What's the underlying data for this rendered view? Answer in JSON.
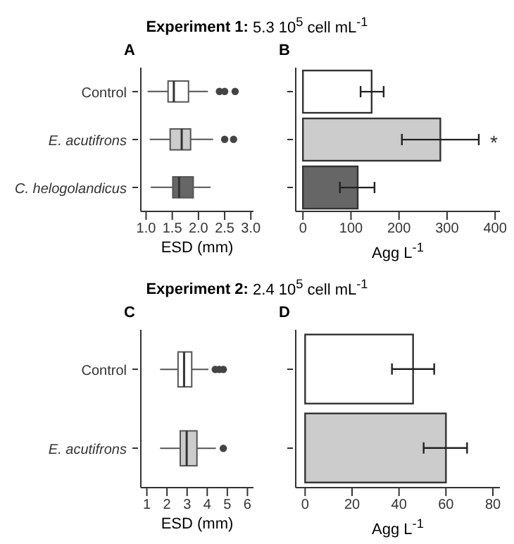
{
  "chart_data": [
    {
      "type": "box",
      "orientation": "horizontal",
      "title": "Experiment 1: 5.3 10$^{5}$ cell mL$^{-1}$",
      "subtitle": "A",
      "xlabel": "ESD (mm)",
      "categories": [
        "Control",
        "E. acutifrons",
        "C. helogolandicus"
      ],
      "colors": [
        "#ffffff",
        "#cccccc",
        "#666666"
      ],
      "boxes": [
        {
          "low": 1.03,
          "q1": 1.42,
          "median": 1.53,
          "q3": 1.81,
          "high": 2.18,
          "outliers": [
            2.4,
            2.5,
            2.7
          ]
        },
        {
          "low": 1.07,
          "q1": 1.46,
          "median": 1.68,
          "q3": 1.85,
          "high": 2.28,
          "outliers": [
            2.5,
            2.67
          ]
        },
        {
          "low": 1.09,
          "q1": 1.51,
          "median": 1.63,
          "q3": 1.9,
          "high": 2.23
        }
      ],
      "xlim": [
        0.9,
        3.05
      ],
      "xticks": [
        {
          "value": 1,
          "label": "1.0"
        },
        1.5,
        {
          "value": 2,
          "label": "2.0"
        },
        2.5,
        {
          "value": 3,
          "label": "3.0"
        }
      ],
      "legend": false
    },
    {
      "type": "bar",
      "orientation": "horizontal",
      "subtitle": "B",
      "xlabel": "Agg L$^{-1}$",
      "categories": [
        "Control",
        "E. acutifrons",
        "C. helogolandicus"
      ],
      "tick_labels": "x",
      "values": [
        143,
        286,
        114
      ],
      "colors": [
        "#ffffff",
        "#cccccc",
        "#666666"
      ],
      "errors": [
        [
          120,
          168
        ],
        [
          206,
          366
        ],
        [
          77,
          149
        ]
      ],
      "xlim": [
        -15,
        410
      ],
      "xticks": [
        0,
        100,
        200,
        300,
        400
      ],
      "annotations": [
        {
          "text": "*",
          "x": 366,
          "y": "E. acutifrons"
        }
      ],
      "legend": false
    },
    {
      "type": "box",
      "orientation": "horizontal",
      "title": "Experiment 2: 2.4 10$^{5}$ cell mL$^{-1}$",
      "subtitle": "C",
      "xlabel": "ESD (mm)",
      "categories": [
        "Control",
        "E. acutifrons"
      ],
      "colors": [
        "#ffffff",
        "#cccccc"
      ],
      "boxes": [
        {
          "low": 1.66,
          "q1": 2.55,
          "median": 2.85,
          "q3": 3.23,
          "high": 4.06,
          "outliers": [
            4.4,
            4.6,
            4.8
          ]
        },
        {
          "low": 1.66,
          "q1": 2.66,
          "median": 2.98,
          "q3": 3.49,
          "high": 4.43,
          "outliers": [
            4.8
          ]
        }
      ],
      "xlim": [
        0.7,
        6.3
      ],
      "xticks": [
        1,
        2,
        3,
        4,
        5,
        6
      ],
      "legend": false
    },
    {
      "type": "bar",
      "orientation": "horizontal",
      "subtitle": "D",
      "xlabel": "Agg L$^{-1}$",
      "categories": [
        "Control",
        "E. acutifrons"
      ],
      "tick_labels": "x",
      "values": [
        46,
        60
      ],
      "colors": [
        "#ffffff",
        "#cccccc"
      ],
      "errors": [
        [
          37,
          55
        ],
        [
          50.5,
          69
        ]
      ],
      "xlim": [
        -4,
        83
      ],
      "xticks": [
        0,
        20,
        40,
        60,
        80
      ],
      "legend": false
    }
  ]
}
